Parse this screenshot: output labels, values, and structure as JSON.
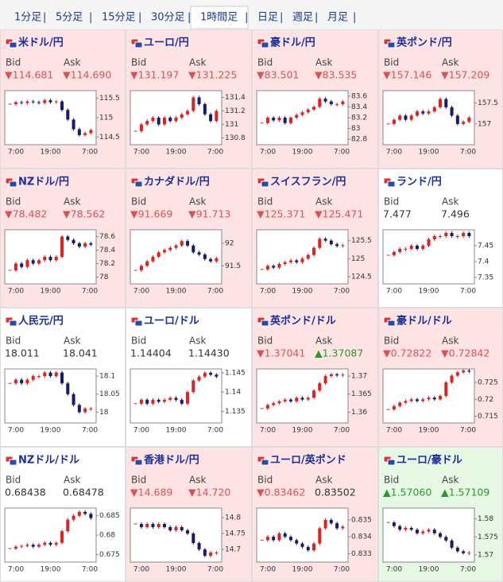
{
  "tabs": [
    {
      "label": "1分足",
      "active": false
    },
    {
      "label": "5分足",
      "active": false
    },
    {
      "label": "15分足",
      "active": false
    },
    {
      "label": "30分足",
      "active": false
    },
    {
      "label": "1時間足",
      "active": true
    },
    {
      "label": "日足",
      "active": false
    },
    {
      "label": "週足",
      "active": false
    },
    {
      "label": "月足",
      "active": false
    }
  ],
  "tiles": [
    {
      "title": "米ドル/円",
      "bg": "#fde3e3",
      "bid_label": "Bid",
      "ask_label": "Ask",
      "bid": "▼114.681",
      "ask": "▼114.690",
      "chart": {
        "type": "candlestick",
        "ylim": [
          114.3,
          115.7
        ],
        "yticks": [
          115.5,
          115,
          114.5
        ],
        "xticks": [
          "7:00",
          "19:00",
          "7:00"
        ],
        "values": [
          115.35,
          115.4,
          115.38,
          115.42,
          115.4,
          115.38,
          115.45,
          115.4,
          115.42,
          115.2,
          114.95,
          114.7,
          114.55,
          114.6,
          114.68
        ]
      }
    },
    {
      "title": "ユーロ/円",
      "bg": "#fde3e3",
      "bid_label": "Bid",
      "ask_label": "Ask",
      "bid": "▼131.197",
      "ask": "▼131.225",
      "chart": {
        "type": "candlestick",
        "ylim": [
          130.7,
          131.5
        ],
        "yticks": [
          131.4,
          131.2,
          131,
          130.8
        ],
        "xticks": [
          "7:00",
          "19:00",
          "7:00"
        ],
        "values": [
          130.9,
          131.0,
          131.05,
          131.1,
          131.0,
          131.1,
          131.05,
          131.1,
          131.15,
          131.2,
          131.4,
          131.3,
          131.15,
          131.05,
          131.2
        ]
      }
    },
    {
      "title": "豪ドル/円",
      "bg": "#fde3e3",
      "bid_label": "Bid",
      "ask_label": "Ask",
      "bid": "▼83.501",
      "ask": "▼83.535",
      "chart": {
        "type": "candlestick",
        "ylim": [
          82.7,
          83.7
        ],
        "yticks": [
          83.6,
          83.4,
          83.2,
          83,
          82.8
        ],
        "xticks": [
          "7:00",
          "19:00",
          "7:00"
        ],
        "values": [
          83.1,
          83.2,
          83.15,
          83.2,
          83.1,
          83.2,
          83.25,
          83.3,
          83.35,
          83.4,
          83.55,
          83.5,
          83.45,
          83.45,
          83.5
        ]
      }
    },
    {
      "title": "英ポンド/円",
      "bg": "#fde3e3",
      "bid_label": "Bid",
      "ask_label": "Ask",
      "bid": "▼157.146",
      "ask": "▼157.209",
      "chart": {
        "type": "candlestick",
        "ylim": [
          156.5,
          157.8
        ],
        "yticks": [
          157.5,
          157
        ],
        "xticks": [
          "7:00",
          "19:00",
          "7:00"
        ],
        "values": [
          157.0,
          157.1,
          157.2,
          157.1,
          157.2,
          157.3,
          157.25,
          157.3,
          157.4,
          157.6,
          157.4,
          157.2,
          157.0,
          157.05,
          157.15
        ]
      }
    },
    {
      "title": "NZドル/円",
      "bg": "#fde3e3",
      "bid_label": "Bid",
      "ask_label": "Ask",
      "bid": "▼78.482",
      "ask": "▼78.562",
      "chart": {
        "type": "candlestick",
        "ylim": [
          77.9,
          78.7
        ],
        "yticks": [
          78.6,
          78.4,
          78.2,
          78
        ],
        "xticks": [
          "7:00",
          "19:00",
          "7:00"
        ],
        "values": [
          78.1,
          78.2,
          78.15,
          78.25,
          78.2,
          78.25,
          78.3,
          78.25,
          78.3,
          78.6,
          78.55,
          78.5,
          78.45,
          78.5,
          78.48
        ]
      }
    },
    {
      "title": "カナダドル/円",
      "bg": "#fde3e3",
      "bid_label": "Bid",
      "ask_label": "Ask",
      "bid": "▼91.669",
      "ask": "▼91.713",
      "chart": {
        "type": "candlestick",
        "ylim": [
          91.1,
          92.3
        ],
        "yticks": [
          92,
          91.5
        ],
        "xticks": [
          "7:00",
          "19:00",
          "7:00"
        ],
        "values": [
          91.4,
          91.5,
          91.6,
          91.7,
          91.8,
          91.85,
          91.9,
          91.95,
          92.05,
          91.95,
          91.8,
          91.75,
          91.65,
          91.6,
          91.67
        ]
      }
    },
    {
      "title": "スイスフラン/円",
      "bg": "#fde3e3",
      "bid_label": "Bid",
      "ask_label": "Ask",
      "bid": "▼125.371",
      "ask": "▼125.471",
      "chart": {
        "type": "candlestick",
        "ylim": [
          124.3,
          125.8
        ],
        "yticks": [
          125.5,
          125,
          124.5
        ],
        "xticks": [
          "7:00",
          "19:00",
          "7:00"
        ],
        "values": [
          124.7,
          124.8,
          124.75,
          124.85,
          124.9,
          124.95,
          124.9,
          125.0,
          125.1,
          125.3,
          125.55,
          125.5,
          125.4,
          125.35,
          125.37
        ]
      }
    },
    {
      "title": "ランド/円",
      "bg": "#ffffff",
      "bid_label": "Bid",
      "ask_label": "Ask",
      "bid": "7.477",
      "ask": "7.496",
      "chart": {
        "type": "candlestick",
        "ylim": [
          7.33,
          7.5
        ],
        "yticks": [
          7.45,
          7.4,
          7.35
        ],
        "xticks": [
          "7:00",
          "19:00",
          "7:00"
        ],
        "values": [
          7.42,
          7.43,
          7.44,
          7.44,
          7.45,
          7.44,
          7.45,
          7.47,
          7.48,
          7.48,
          7.49,
          7.48,
          7.48,
          7.49,
          7.48
        ]
      }
    },
    {
      "title": "人民元/円",
      "bg": "#ffffff",
      "bid_label": "Bid",
      "ask_label": "Ask",
      "bid": "18.011",
      "ask": "18.041",
      "chart": {
        "type": "candlestick",
        "ylim": [
          17.97,
          18.12
        ],
        "yticks": [
          18.1,
          18.05,
          18
        ],
        "xticks": [
          "7:00",
          "19:00",
          "7:00"
        ],
        "values": [
          18.08,
          18.09,
          18.08,
          18.09,
          18.1,
          18.1,
          18.11,
          18.1,
          18.11,
          18.08,
          18.05,
          18.02,
          18.0,
          18.01,
          18.01
        ]
      }
    },
    {
      "title": "ユーロ/ドル",
      "bg": "#ffffff",
      "bid_label": "Bid",
      "ask_label": "Ask",
      "bid": "1.14404",
      "ask": "1.14430",
      "chart": {
        "type": "candlestick",
        "ylim": [
          1.132,
          1.146
        ],
        "yticks": [
          1.145,
          1.14,
          1.135
        ],
        "xticks": [
          "7:00",
          "19:00",
          "7:00"
        ],
        "values": [
          1.137,
          1.138,
          1.137,
          1.138,
          1.1375,
          1.138,
          1.1385,
          1.138,
          1.137,
          1.14,
          1.143,
          1.144,
          1.145,
          1.1445,
          1.144
        ]
      }
    },
    {
      "title": "英ポンド/ドル",
      "bg": "#fde3e3",
      "bid_label": "Bid",
      "ask_label": "Ask",
      "bid": "▼1.37041",
      "ask": "▲1.37087",
      "chart": {
        "type": "candlestick",
        "ylim": [
          1.357,
          1.372
        ],
        "yticks": [
          1.37,
          1.365,
          1.36
        ],
        "xticks": [
          "7:00",
          "19:00",
          "7:00"
        ],
        "values": [
          1.361,
          1.362,
          1.3625,
          1.363,
          1.3635,
          1.363,
          1.364,
          1.3635,
          1.364,
          1.366,
          1.368,
          1.37,
          1.3705,
          1.3702,
          1.3704
        ]
      }
    },
    {
      "title": "豪ドル/ドル",
      "bg": "#fde3e3",
      "bid_label": "Bid",
      "ask_label": "Ask",
      "bid": "▼0.72822",
      "ask": "▼0.72842",
      "chart": {
        "type": "candlestick",
        "ylim": [
          0.713,
          0.729
        ],
        "yticks": [
          0.725,
          0.72,
          0.715
        ],
        "xticks": [
          "7:00",
          "19:00",
          "7:00"
        ],
        "values": [
          0.717,
          0.718,
          0.719,
          0.7195,
          0.72,
          0.7195,
          0.72,
          0.7205,
          0.72,
          0.721,
          0.725,
          0.727,
          0.728,
          0.7285,
          0.7282
        ]
      }
    },
    {
      "title": "NZドル/ドル",
      "bg": "#ffffff",
      "bid_label": "Bid",
      "ask_label": "Ask",
      "bid": "0.68438",
      "ask": "0.68478",
      "chart": {
        "type": "candlestick",
        "ylim": [
          0.673,
          0.687
        ],
        "yticks": [
          0.685,
          0.68,
          0.675
        ],
        "xticks": [
          "7:00",
          "19:00",
          "7:00"
        ],
        "values": [
          0.6765,
          0.677,
          0.6772,
          0.6775,
          0.677,
          0.6775,
          0.678,
          0.6775,
          0.678,
          0.681,
          0.684,
          0.685,
          0.686,
          0.6855,
          0.6844
        ]
      }
    },
    {
      "title": "香港ドル/円",
      "bg": "#fde3e3",
      "bid_label": "Bid",
      "ask_label": "Ask",
      "bid": "▼14.689",
      "ask": "▼14.720",
      "chart": {
        "type": "candlestick",
        "ylim": [
          14.66,
          14.83
        ],
        "yticks": [
          14.8,
          14.75,
          14.7
        ],
        "xticks": [
          "7:00",
          "19:00",
          "7:00"
        ],
        "values": [
          14.78,
          14.77,
          14.78,
          14.77,
          14.78,
          14.77,
          14.76,
          14.77,
          14.76,
          14.75,
          14.72,
          14.7,
          14.68,
          14.69,
          14.69
        ]
      }
    },
    {
      "title": "ユーロ/英ポンド",
      "bg": "#fde3e3",
      "bid_label": "Bid",
      "ask_label": "Ask",
      "bid": "▼0.83462",
      "ask": "0.83502",
      "chart": {
        "type": "candlestick",
        "ylim": [
          0.8325,
          0.8357
        ],
        "yticks": [
          0.835,
          0.834,
          0.833
        ],
        "xticks": [
          "7:00",
          "19:00",
          "7:00"
        ],
        "values": [
          0.8338,
          0.834,
          0.8338,
          0.8342,
          0.834,
          0.8338,
          0.8336,
          0.8334,
          0.8332,
          0.8336,
          0.8345,
          0.835,
          0.8348,
          0.8345,
          0.8346
        ]
      }
    },
    {
      "title": "ユーロ/豪ドル",
      "bg": "#e6f7e3",
      "bid_label": "Bid",
      "ask_label": "Ask",
      "bid": "▲1.57060",
      "ask": "▲1.57109",
      "chart": {
        "type": "candlestick",
        "ylim": [
          1.568,
          1.583
        ],
        "yticks": [
          1.58,
          1.575,
          1.57
        ],
        "xticks": [
          "7:00",
          "19:00",
          "7:00"
        ],
        "values": [
          1.579,
          1.578,
          1.577,
          1.5775,
          1.577,
          1.576,
          1.5765,
          1.577,
          1.576,
          1.575,
          1.574,
          1.572,
          1.571,
          1.5705,
          1.5706
        ]
      }
    }
  ]
}
